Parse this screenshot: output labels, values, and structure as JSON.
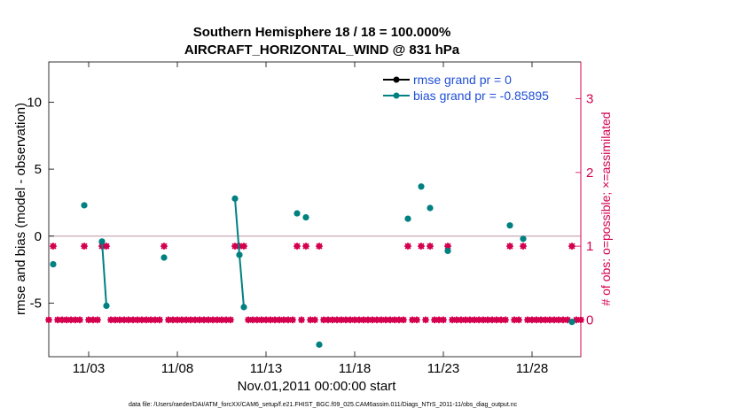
{
  "chart_data": {
    "type": "scatter",
    "title": [
      "Southern Hemisphere 18 / 18 = 100.000%",
      "AIRCRAFT_HORIZONTAL_WIND @ 831 hPa"
    ],
    "xlabel": "Nov.01,2011 00:00:00 start",
    "ylabel": "rmse and bias (model - observation)",
    "y2label": "# of obs: o=possible; ×=assimilated",
    "footer": "data file: /Users/raeder/DAI/ATM_forcXX/CAM6_setup/f.e21.FHIST_BGC.f09_025.CAM6assim.011/Diags_NTrS_2011-11/obs_diag_output.nc",
    "xlim": [
      0.75,
      30.75
    ],
    "ylim": [
      -9,
      13
    ],
    "y2lim": [
      -0.5,
      3.5
    ],
    "xticks": [
      {
        "value": 3,
        "label": "11/03"
      },
      {
        "value": 8,
        "label": "11/08"
      },
      {
        "value": 13,
        "label": "11/13"
      },
      {
        "value": 18,
        "label": "11/18"
      },
      {
        "value": 23,
        "label": "11/23"
      },
      {
        "value": 28,
        "label": "11/28"
      }
    ],
    "yticks": [
      {
        "value": 10,
        "label": "10"
      },
      {
        "value": 5,
        "label": "5"
      },
      {
        "value": 0,
        "label": "0"
      },
      {
        "value": -5,
        "label": "-5"
      }
    ],
    "y2ticks": [
      {
        "value": 0,
        "label": "0"
      },
      {
        "value": 1,
        "label": "1"
      },
      {
        "value": 2,
        "label": "2"
      },
      {
        "value": 3,
        "label": "3"
      }
    ],
    "zero_line": 0,
    "legend": {
      "placement": "top-right",
      "entries": [
        "rmse grand pr = 0",
        "bias grand pr = -0.85895"
      ]
    },
    "colors": {
      "rmse": "#000000",
      "bias": "#008080",
      "obs": "#d4004f",
      "zero": "#c8a8b8"
    },
    "bias_points": [
      {
        "x": 1.0,
        "y": -2.1
      },
      {
        "x": 2.75,
        "y": 2.3
      },
      {
        "x": 3.75,
        "y": -0.4
      },
      {
        "x": 4.0,
        "y": -5.2
      },
      {
        "x": 7.25,
        "y": -1.6
      },
      {
        "x": 11.25,
        "y": 2.8
      },
      {
        "x": 11.5,
        "y": -1.4
      },
      {
        "x": 11.75,
        "y": -5.3
      },
      {
        "x": 14.75,
        "y": 1.7
      },
      {
        "x": 15.25,
        "y": 1.4
      },
      {
        "x": 16.0,
        "y": -8.1
      },
      {
        "x": 21.0,
        "y": 1.3
      },
      {
        "x": 21.75,
        "y": 3.7
      },
      {
        "x": 22.25,
        "y": 2.1
      },
      {
        "x": 23.25,
        "y": -1.1
      },
      {
        "x": 26.75,
        "y": 0.8
      },
      {
        "x": 27.5,
        "y": -0.2
      },
      {
        "x": 30.25,
        "y": -6.4
      }
    ],
    "bias_segments": [
      [
        {
          "x": 3.75,
          "y": -0.4
        },
        {
          "x": 4.0,
          "y": -5.2
        }
      ],
      [
        {
          "x": 11.25,
          "y": 2.8
        },
        {
          "x": 11.5,
          "y": -1.4
        },
        {
          "x": 11.75,
          "y": -5.3
        }
      ]
    ],
    "obs_possible": [
      {
        "x": 1.0,
        "y": 1
      },
      {
        "x": 2.75,
        "y": 1
      },
      {
        "x": 3.75,
        "y": 1
      },
      {
        "x": 4.0,
        "y": 1
      },
      {
        "x": 7.25,
        "y": 1
      },
      {
        "x": 11.25,
        "y": 1
      },
      {
        "x": 11.5,
        "y": 1
      },
      {
        "x": 11.75,
        "y": 1
      },
      {
        "x": 14.75,
        "y": 1
      },
      {
        "x": 15.25,
        "y": 1
      },
      {
        "x": 16.0,
        "y": 1
      },
      {
        "x": 21.0,
        "y": 1
      },
      {
        "x": 21.75,
        "y": 1
      },
      {
        "x": 22.25,
        "y": 1
      },
      {
        "x": 23.25,
        "y": 1
      },
      {
        "x": 26.75,
        "y": 1
      },
      {
        "x": 27.5,
        "y": 1
      },
      {
        "x": 30.25,
        "y": 1
      }
    ],
    "obs_zero_range": {
      "start": 0.75,
      "end": 30.75,
      "step": 0.25,
      "value": 0
    },
    "obs_zero_exclude": [
      1.0,
      2.75,
      3.75,
      4.0,
      7.25,
      11.25,
      11.5,
      11.75,
      14.75,
      15.25,
      16.0,
      21.0,
      21.75,
      22.25,
      23.25,
      26.75,
      27.5,
      30.25
    ]
  }
}
